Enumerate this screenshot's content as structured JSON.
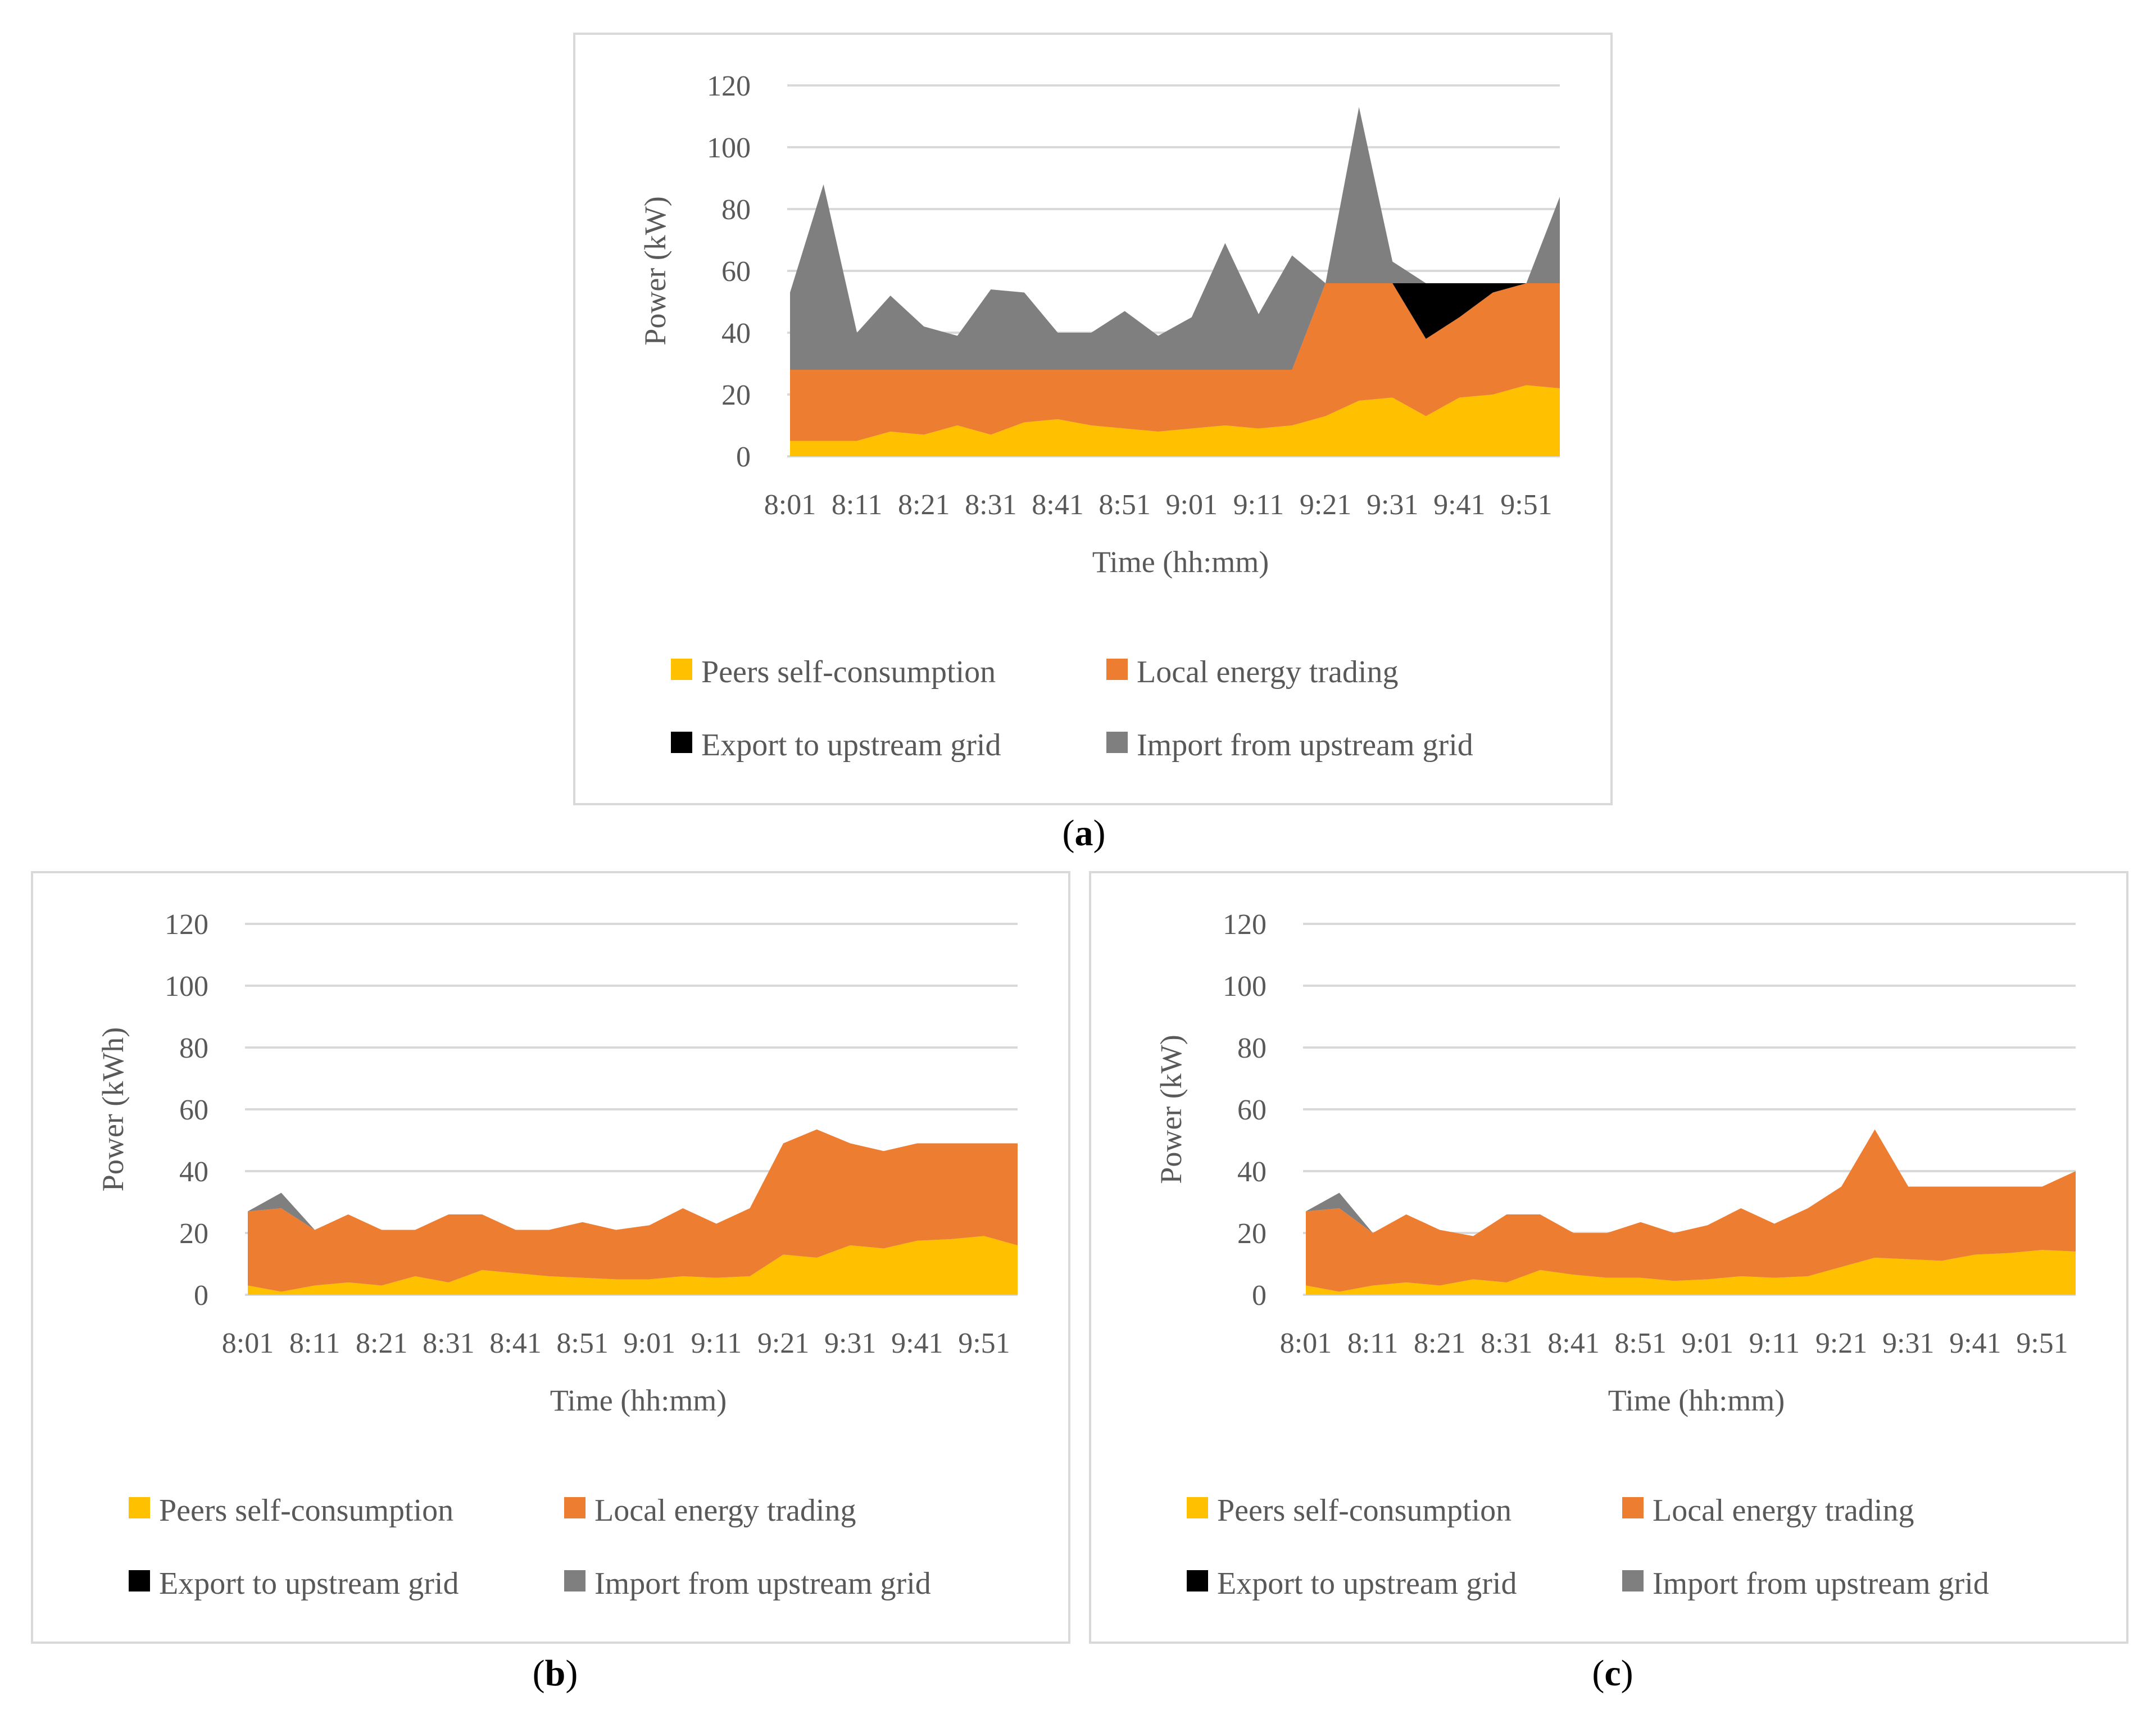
{
  "colors": {
    "self": "#FFC000",
    "trading": "#ED7D31",
    "export": "#000000",
    "import": "#7F7F7F",
    "grid": "#D9D9D9"
  },
  "charts": [
    {
      "caption_open": "(",
      "caption_letter": "a",
      "caption_close": ")"
    },
    {
      "caption_open": "(",
      "caption_letter": "b",
      "caption_close": ")"
    },
    {
      "caption_open": "(",
      "caption_letter": "c",
      "caption_close": ")"
    }
  ],
  "chart_data": [
    {
      "id": "a",
      "type": "area",
      "stacked": true,
      "xlabel": "Time (hh:mm)",
      "ylabel": "Power (kW)",
      "ylim": [
        0,
        120
      ],
      "yticks": [
        0,
        20,
        40,
        60,
        80,
        100,
        120
      ],
      "xticks": [
        "8:01",
        "8:11",
        "8:21",
        "8:31",
        "8:41",
        "8:51",
        "9:01",
        "9:11",
        "9:21",
        "9:31",
        "9:41",
        "9:51"
      ],
      "grid": true,
      "legend_position": "bottom",
      "series": [
        {
          "name": "Peers self-consumption",
          "key": "self",
          "values": [
            5,
            5,
            5,
            8,
            7,
            10,
            7,
            11,
            12,
            10,
            9,
            8,
            9,
            10,
            9,
            10,
            13,
            18,
            19,
            13,
            19,
            20,
            23,
            22
          ]
        },
        {
          "name": "Local energy trading",
          "key": "trading",
          "values": [
            23,
            23,
            23,
            20,
            21,
            18,
            21,
            17,
            16,
            18,
            19,
            20,
            19,
            18,
            19,
            18,
            43,
            38,
            37,
            25,
            26,
            33,
            33,
            34
          ]
        },
        {
          "name": "Export to upstream grid",
          "key": "export",
          "values": [
            0,
            0,
            0,
            0,
            0,
            0,
            0,
            0,
            0,
            0,
            0,
            0,
            0,
            0,
            0,
            0,
            0,
            0,
            0,
            18,
            11,
            3,
            0,
            0
          ]
        },
        {
          "name": "Import from upstream grid",
          "key": "import",
          "values": [
            25,
            60,
            12,
            24,
            14,
            11,
            26,
            25,
            12,
            12,
            19,
            11,
            17,
            41,
            18,
            37,
            0,
            57,
            7,
            0,
            0,
            0,
            0,
            28
          ]
        }
      ]
    },
    {
      "id": "b",
      "type": "area",
      "stacked": true,
      "xlabel": "Time (hh:mm)",
      "ylabel": "Power (kWh)",
      "ylim": [
        0,
        120
      ],
      "yticks": [
        0,
        20,
        40,
        60,
        80,
        100,
        120
      ],
      "xticks": [
        "8:01",
        "8:11",
        "8:21",
        "8:31",
        "8:41",
        "8:51",
        "9:01",
        "9:11",
        "9:21",
        "9:31",
        "9:41",
        "9:51"
      ],
      "grid": true,
      "legend_position": "bottom",
      "series": [
        {
          "name": "Peers self-consumption",
          "key": "self",
          "values": [
            3,
            1,
            3,
            4,
            3,
            6,
            4,
            8,
            7,
            6,
            5.5,
            5,
            5,
            6,
            5.5,
            6,
            13,
            12,
            16,
            15,
            17.5,
            18,
            19,
            16
          ]
        },
        {
          "name": "Local energy trading",
          "key": "trading",
          "values": [
            24,
            27,
            18,
            22,
            18,
            15,
            22,
            18,
            14,
            15,
            18,
            16,
            17.5,
            22,
            17.5,
            22,
            36,
            41.5,
            33,
            31.5,
            31.5,
            31,
            30,
            33
          ]
        },
        {
          "name": "Export to upstream grid",
          "key": "export",
          "values": [
            0,
            0,
            0,
            0,
            0,
            0,
            0,
            0,
            0,
            0,
            0,
            0,
            0,
            0,
            0,
            0,
            0,
            0,
            0,
            0,
            0,
            0,
            0,
            0
          ]
        },
        {
          "name": "Import from upstream grid",
          "key": "import",
          "values": [
            0,
            5,
            0,
            0,
            0,
            0,
            0,
            0,
            0,
            0,
            0,
            0,
            0,
            0,
            0,
            0,
            0,
            0,
            0,
            0,
            0,
            0,
            0,
            0
          ]
        }
      ]
    },
    {
      "id": "c",
      "type": "area",
      "stacked": true,
      "xlabel": "Time (hh:mm)",
      "ylabel": "Power (kW)",
      "ylim": [
        0,
        120
      ],
      "yticks": [
        0,
        20,
        40,
        60,
        80,
        100,
        120
      ],
      "xticks": [
        "8:01",
        "8:11",
        "8:21",
        "8:31",
        "8:41",
        "8:51",
        "9:01",
        "9:11",
        "9:21",
        "9:31",
        "9:41",
        "9:51"
      ],
      "grid": true,
      "legend_position": "bottom",
      "series": [
        {
          "name": "Peers self-consumption",
          "key": "self",
          "values": [
            3,
            1,
            3,
            4,
            3,
            5,
            4,
            8,
            6.5,
            5.5,
            5.5,
            4.5,
            5,
            6,
            5.5,
            6,
            9,
            12,
            11.5,
            11,
            13,
            13.5,
            14.5,
            14
          ]
        },
        {
          "name": "Local energy trading",
          "key": "trading",
          "values": [
            24,
            27,
            17,
            22,
            18,
            14,
            22,
            18,
            13.5,
            14.5,
            18,
            15.5,
            17.5,
            22,
            17.5,
            22,
            26,
            41.5,
            23.5,
            24,
            22,
            21.5,
            20.5,
            26
          ]
        },
        {
          "name": "Export to upstream grid",
          "key": "export",
          "values": [
            0,
            0,
            0,
            0,
            0,
            0,
            0,
            0,
            0,
            0,
            0,
            0,
            0,
            0,
            0,
            0,
            0,
            0,
            0,
            0,
            0,
            0,
            0,
            0
          ]
        },
        {
          "name": "Import from upstream grid",
          "key": "import",
          "values": [
            0,
            5,
            0,
            0,
            0,
            0,
            0,
            0,
            0,
            0,
            0,
            0,
            0,
            0,
            0,
            0,
            0,
            0,
            0,
            0,
            0,
            0,
            0,
            0
          ]
        }
      ]
    }
  ]
}
